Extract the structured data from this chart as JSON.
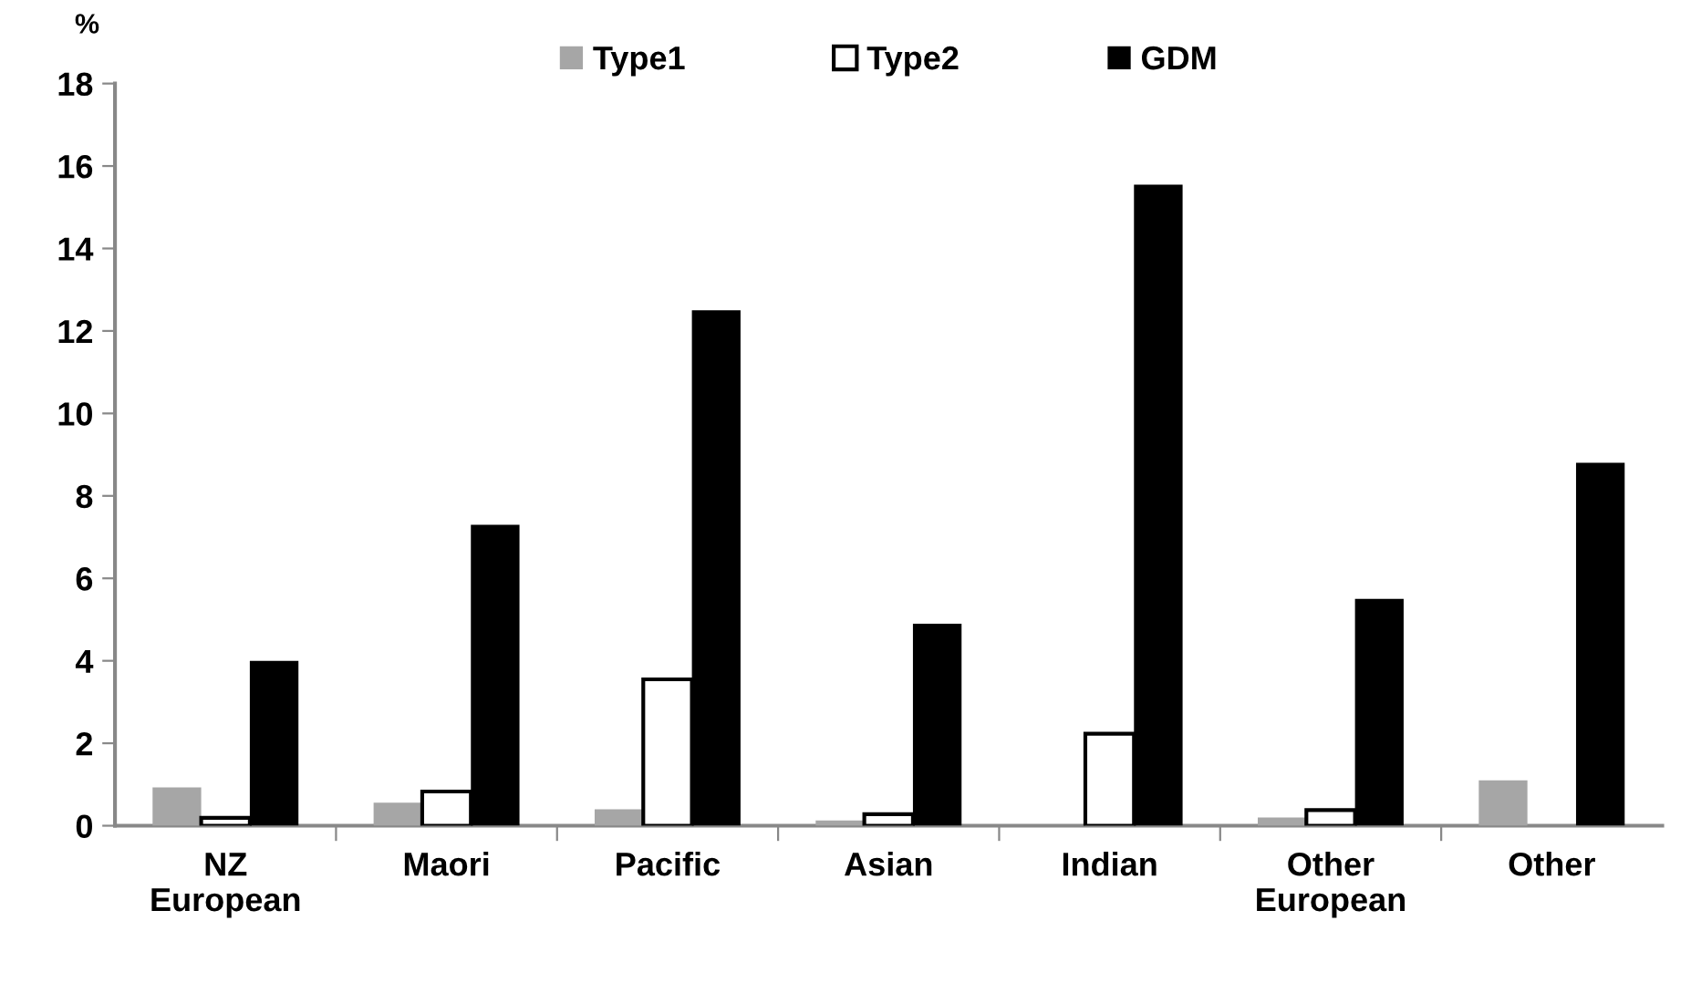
{
  "chart_data": {
    "type": "bar",
    "ylabel": "%",
    "categories": [
      "NZ\nEuropean",
      "Maori",
      "Pacific",
      "Asian",
      "Indian",
      "Other\nEuropean",
      "Other"
    ],
    "series": [
      {
        "name": "Type1",
        "color": "#a6a6a6",
        "values": [
          0.93,
          0.56,
          0.4,
          0.13,
          null,
          0.2,
          1.1
        ]
      },
      {
        "name": "Type2",
        "color": "#ffffff",
        "values": [
          0.19,
          0.83,
          3.55,
          0.28,
          2.23,
          0.38,
          null
        ]
      },
      {
        "name": "GDM",
        "color": "#000000",
        "values": [
          4.0,
          7.3,
          12.5,
          4.9,
          15.55,
          5.5,
          8.8
        ]
      }
    ],
    "ylim": [
      0,
      18
    ],
    "yticks": [
      0,
      2,
      4,
      6,
      8,
      10,
      12,
      14,
      16,
      18
    ],
    "grid": false,
    "legend": "top"
  }
}
